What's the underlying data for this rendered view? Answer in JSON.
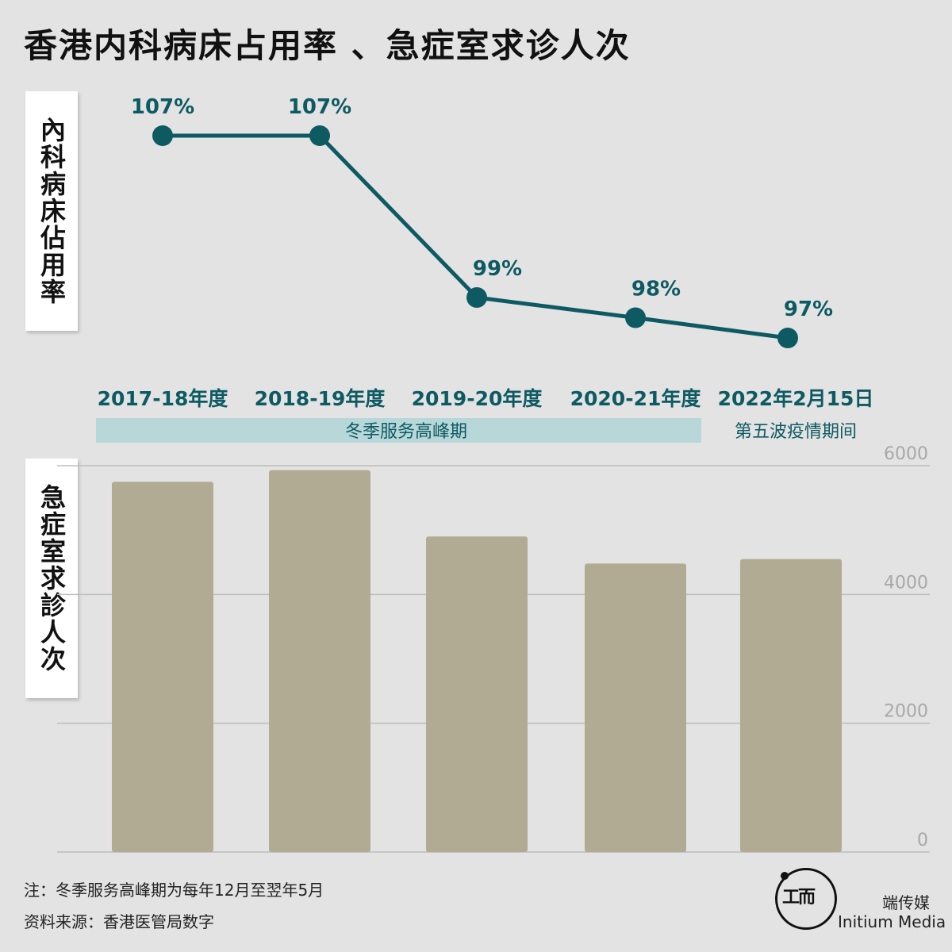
{
  "title": "香港内科病床占用率 、急症室求诊人次",
  "top_axis_label": "內科病床佔用率",
  "bottom_axis_label": "急症室求診人次",
  "band_winter": "冬季服务高峰期",
  "band_wave": "第五波疫情期间",
  "notes": {
    "note1": "注：冬季服务高峰期为每年12月至翌年5月",
    "note2": "资料来源：香港医管局数字"
  },
  "brand": {
    "zh": "端传媒",
    "en": "Initium Media",
    "mark": "工而"
  },
  "colors": {
    "line": "#0e5a63",
    "label_text": "#0e5a63",
    "bar": "#b2ab94",
    "band": "#b8d7d8",
    "grid": "#bdbdbd",
    "tick": "#a8a8a8"
  },
  "chart_data": [
    {
      "type": "line",
      "categories": [
        "2017-18年度",
        "2018-19年度",
        "2019-20年度",
        "2020-21年度",
        "2022年2月15日"
      ],
      "series": [
        {
          "values": [
            107,
            107,
            99,
            98,
            97
          ],
          "labels": [
            "107%",
            "107%",
            "99%",
            "98%",
            "97%"
          ]
        }
      ],
      "ylabel": "內科病床佔用率"
    },
    {
      "type": "bar",
      "categories": [
        "2017-18年度",
        "2018-19年度",
        "2019-20年度",
        "2020-21年度",
        "2022年2月15日"
      ],
      "values": [
        5750,
        5930,
        4900,
        4480,
        4550
      ],
      "ylim": [
        0,
        6000
      ],
      "yticks": [
        "0",
        "2000",
        "4000",
        "6000"
      ],
      "ylabel": "急症室求診人次",
      "grid": true
    }
  ]
}
